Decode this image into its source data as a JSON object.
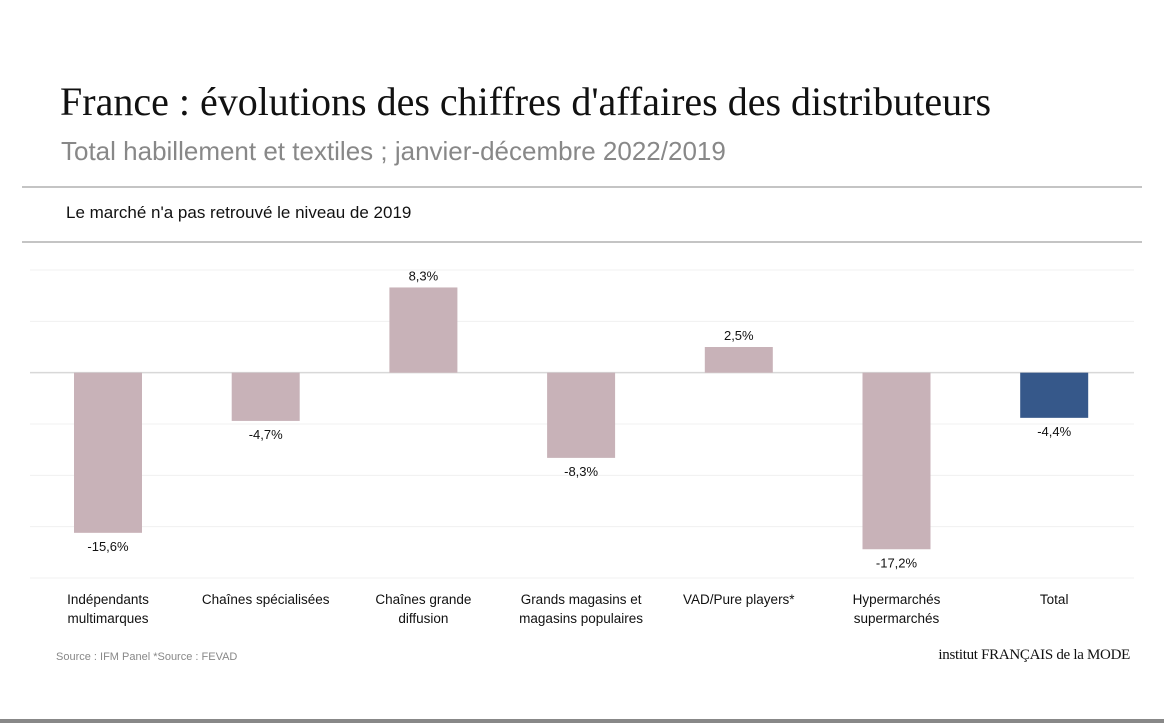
{
  "header": {
    "title": "France : évolutions des chiffres d'affaires des distributeurs",
    "subtitle": "Total habillement et textiles ; janvier-décembre 2022/2019",
    "note": "Le marché n'a pas retrouvé le niveau de 2019"
  },
  "footer": {
    "source": "Source : IFM Panel *Source : FEVAD",
    "logo": "institut FRANÇAIS de la MODE"
  },
  "chart_data": {
    "type": "bar",
    "categories": [
      [
        "Indépendants",
        "multimarques"
      ],
      [
        "Chaînes spécialisées"
      ],
      [
        "Chaînes grande",
        "diffusion"
      ],
      [
        "Grands magasins et",
        "magasins populaires"
      ],
      [
        "VAD/Pure players*"
      ],
      [
        "Hypermarchés",
        "supermarchés"
      ],
      [
        "Total"
      ]
    ],
    "values": [
      -15.6,
      -4.7,
      8.3,
      -8.3,
      2.5,
      -17.2,
      -4.4
    ],
    "data_labels": [
      "-15,6%",
      "-4,7%",
      "8,3%",
      "-8,3%",
      "2,5%",
      "-17,2%",
      "-4,4%"
    ],
    "ylim": [
      -20,
      10
    ],
    "grid": true,
    "colors": {
      "default": "#c8b2b8",
      "highlight": "#36588a"
    },
    "highlight_index": 6
  }
}
